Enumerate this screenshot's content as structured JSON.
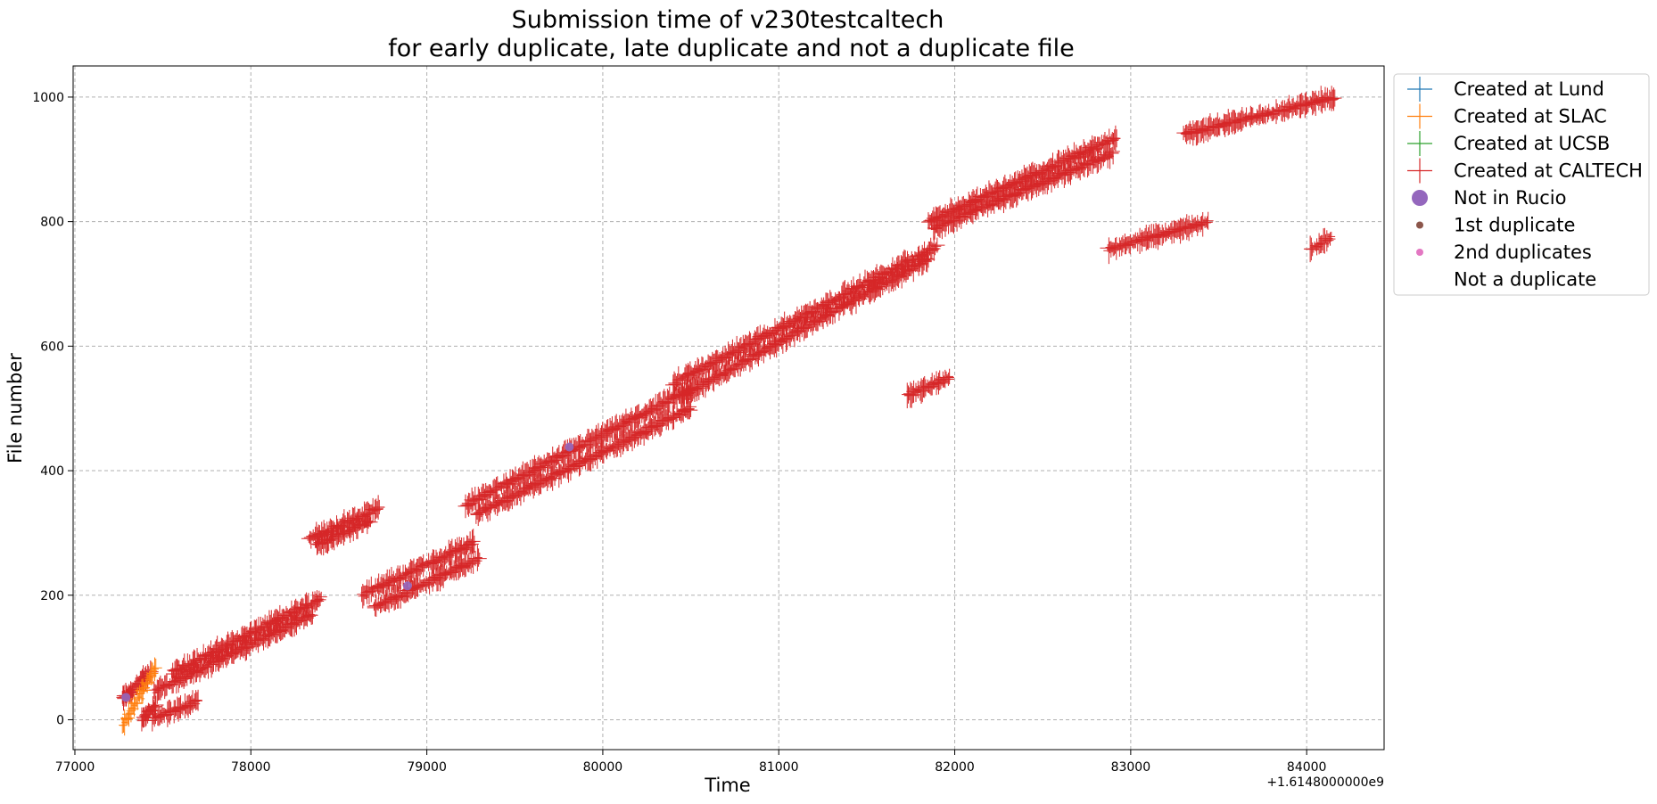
{
  "chart_data": {
    "type": "scatter",
    "title_line1": "Submission time of v230testcaltech",
    "title_line2": "for early duplicate, late duplicate and not a duplicate file",
    "xlabel": "Time",
    "ylabel": "File number",
    "x_offset_label": "+1.6148000000e9",
    "xlim": [
      76990,
      84440
    ],
    "ylim": [
      -48,
      1050
    ],
    "x_ticks": [
      77000,
      78000,
      79000,
      80000,
      81000,
      82000,
      83000,
      84000
    ],
    "x_tick_labels": [
      "77000",
      "78000",
      "79000",
      "80000",
      "81000",
      "82000",
      "83000",
      "84000"
    ],
    "y_ticks": [
      0,
      200,
      400,
      600,
      800,
      1000
    ],
    "y_tick_labels": [
      "0",
      "200",
      "400",
      "600",
      "800",
      "1000"
    ],
    "grid": true,
    "legend_position": "outside-top-right",
    "legend": [
      {
        "label": "Created at Lund",
        "marker": "plus",
        "color": "#1f77b4"
      },
      {
        "label": "Created at SLAC",
        "marker": "plus",
        "color": "#ff7f0e"
      },
      {
        "label": "Created at UCSB",
        "marker": "plus",
        "color": "#2ca02c"
      },
      {
        "label": "Created at CALTECH",
        "marker": "plus",
        "color": "#d62728"
      },
      {
        "label": "Not in Rucio",
        "marker": "circle-large",
        "color": "#9467bd"
      },
      {
        "label": "1st duplicate",
        "marker": "circle-small",
        "color": "#8c564b"
      },
      {
        "label": "2nd duplicates",
        "marker": "circle-small",
        "color": "#e377c2"
      },
      {
        "label": "Not a duplicate",
        "marker": "none",
        "color": "#ffffff"
      }
    ],
    "series": [
      {
        "name": "Created at CALTECH",
        "color": "#d62728",
        "marker": "plus",
        "x_range": [
          77270,
          77330
        ],
        "y_range": [
          35,
          45
        ]
      },
      {
        "name": "Created at CALTECH",
        "color": "#d62728",
        "marker": "plus",
        "x_range": [
          77330,
          77430
        ],
        "y_range": [
          50,
          75
        ]
      },
      {
        "name": "Created at CALTECH",
        "color": "#d62728",
        "marker": "plus",
        "x_range": [
          77380,
          77460
        ],
        "y_range": [
          0,
          25
        ]
      },
      {
        "name": "Created at CALTECH",
        "color": "#d62728",
        "marker": "plus",
        "x_range": [
          77440,
          77700
        ],
        "y_range": [
          0,
          30
        ]
      },
      {
        "name": "Created at CALTECH",
        "color": "#d62728",
        "marker": "plus",
        "x_range": [
          77550,
          78400
        ],
        "y_range": [
          75,
          195
        ]
      },
      {
        "name": "Created at CALTECH",
        "color": "#d62728",
        "marker": "plus",
        "x_range": [
          77450,
          78350
        ],
        "y_range": [
          45,
          170
        ]
      },
      {
        "name": "Created at CALTECH",
        "color": "#d62728",
        "marker": "plus",
        "x_range": [
          78330,
          78730
        ],
        "y_range": [
          290,
          340
        ]
      },
      {
        "name": "Created at CALTECH",
        "color": "#d62728",
        "marker": "plus",
        "x_range": [
          78370,
          78680
        ],
        "y_range": [
          280,
          320
        ]
      },
      {
        "name": "Created at CALTECH",
        "color": "#d62728",
        "marker": "plus",
        "x_range": [
          78630,
          79270
        ],
        "y_range": [
          200,
          285
        ]
      },
      {
        "name": "Created at CALTECH",
        "color": "#d62728",
        "marker": "plus",
        "x_range": [
          78700,
          79300
        ],
        "y_range": [
          180,
          260
        ]
      },
      {
        "name": "Created at CALTECH",
        "color": "#d62728",
        "marker": "plus",
        "x_range": [
          79220,
          80500
        ],
        "y_range": [
          345,
          530
        ]
      },
      {
        "name": "Created at CALTECH",
        "color": "#d62728",
        "marker": "plus",
        "x_range": [
          79280,
          80500
        ],
        "y_range": [
          330,
          500
        ]
      },
      {
        "name": "Created at CALTECH",
        "color": "#d62728",
        "marker": "plus",
        "x_range": [
          80400,
          81900
        ],
        "y_range": [
          540,
          760
        ]
      },
      {
        "name": "Created at CALTECH",
        "color": "#d62728",
        "marker": "plus",
        "x_range": [
          80450,
          81850
        ],
        "y_range": [
          520,
          740
        ]
      },
      {
        "name": "Created at CALTECH",
        "color": "#d62728",
        "marker": "plus",
        "x_range": [
          81730,
          81970
        ],
        "y_range": [
          520,
          550
        ]
      },
      {
        "name": "Created at CALTECH",
        "color": "#d62728",
        "marker": "plus",
        "x_range": [
          81850,
          82920
        ],
        "y_range": [
          800,
          935
        ]
      },
      {
        "name": "Created at CALTECH",
        "color": "#d62728",
        "marker": "plus",
        "x_range": [
          81880,
          82900
        ],
        "y_range": [
          790,
          910
        ]
      },
      {
        "name": "Created at CALTECH",
        "color": "#d62728",
        "marker": "plus",
        "x_range": [
          82870,
          83440
        ],
        "y_range": [
          755,
          800
        ]
      },
      {
        "name": "Created at CALTECH",
        "color": "#d62728",
        "marker": "plus",
        "x_range": [
          83300,
          84160
        ],
        "y_range": [
          940,
          1000
        ]
      },
      {
        "name": "Created at CALTECH",
        "color": "#d62728",
        "marker": "plus",
        "x_range": [
          84020,
          84140
        ],
        "y_range": [
          755,
          775
        ]
      },
      {
        "name": "Created at SLAC",
        "color": "#ff7f0e",
        "marker": "plus",
        "x_range": [
          77270,
          77460
        ],
        "y_range": [
          -10,
          85
        ]
      },
      {
        "name": "Not in Rucio",
        "color": "#9467bd",
        "marker": "circle-large",
        "points": [
          [
            77290,
            36
          ],
          [
            78890,
            215
          ],
          [
            79810,
            438
          ]
        ]
      }
    ]
  }
}
